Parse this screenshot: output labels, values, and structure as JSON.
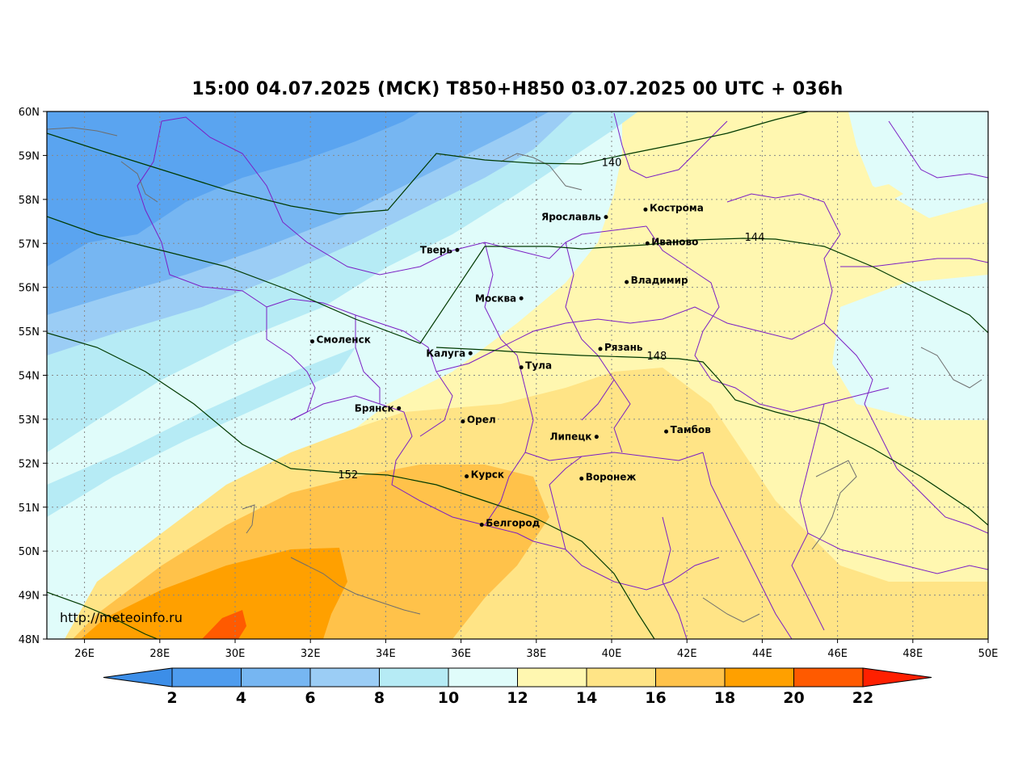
{
  "title": "15:00 04.07.2025 (МСК) T850+H850 03.07.2025 00 UTC + 036h",
  "watermark": "http://meteoinfo.ru",
  "map": {
    "lon_range": [
      25,
      50
    ],
    "lat_range": [
      48,
      60
    ],
    "x_ticks": [
      "26E",
      "28E",
      "30E",
      "32E",
      "34E",
      "36E",
      "38E",
      "40E",
      "42E",
      "44E",
      "46E",
      "48E",
      "50E"
    ],
    "x_tick_values": [
      26,
      28,
      30,
      32,
      34,
      36,
      38,
      40,
      42,
      44,
      46,
      48,
      50
    ],
    "y_ticks": [
      "60N",
      "59N",
      "58N",
      "57N",
      "56N",
      "55N",
      "54N",
      "53N",
      "52N",
      "51N",
      "50N",
      "49N",
      "48N"
    ],
    "y_tick_values": [
      60,
      59,
      58,
      57,
      56,
      55,
      54,
      53,
      52,
      51,
      50,
      49,
      48
    ],
    "grid": true
  },
  "cities": [
    {
      "name": "Кострома",
      "lon": 40.9,
      "lat": 57.77
    },
    {
      "name": "Ярославль",
      "lon": 39.85,
      "lat": 57.6
    },
    {
      "name": "Иваново",
      "lon": 40.95,
      "lat": 57.0
    },
    {
      "name": "Тверь",
      "lon": 35.9,
      "lat": 56.85
    },
    {
      "name": "Владимир",
      "lon": 40.4,
      "lat": 56.12
    },
    {
      "name": "Москва",
      "lon": 37.6,
      "lat": 55.75
    },
    {
      "name": "Смоленск",
      "lon": 32.05,
      "lat": 54.77
    },
    {
      "name": "Рязань",
      "lon": 39.7,
      "lat": 54.6
    },
    {
      "name": "Калуга",
      "lon": 36.25,
      "lat": 54.5
    },
    {
      "name": "Тула",
      "lon": 37.6,
      "lat": 54.18
    },
    {
      "name": "Брянск",
      "lon": 34.35,
      "lat": 53.25
    },
    {
      "name": "Орел",
      "lon": 36.05,
      "lat": 52.95
    },
    {
      "name": "Тамбов",
      "lon": 41.45,
      "lat": 52.72
    },
    {
      "name": "Липецк",
      "lon": 39.6,
      "lat": 52.6
    },
    {
      "name": "Курск",
      "lon": 36.15,
      "lat": 51.7
    },
    {
      "name": "Воронеж",
      "lon": 39.2,
      "lat": 51.65
    },
    {
      "name": "Белгород",
      "lon": 36.55,
      "lat": 50.6
    }
  ],
  "contours": [
    {
      "label": "140",
      "label_lon": 40.0,
      "label_lat": 58.85
    },
    {
      "label": "144",
      "label_lon": 43.8,
      "label_lat": 57.15
    },
    {
      "label": "148",
      "label_lon": 41.2,
      "label_lat": 54.45
    },
    {
      "label": "152",
      "label_lon": 33.0,
      "label_lat": 51.75
    }
  ],
  "colorbar": {
    "ticks": [
      "2",
      "4",
      "6",
      "8",
      "10",
      "12",
      "14",
      "16",
      "18",
      "20",
      "22"
    ],
    "colors": [
      "#3c8ee8",
      "#4e9cee",
      "#76b6f2",
      "#9bcdf5",
      "#b6ebf5",
      "#e0fcfa",
      "#fff7b0",
      "#ffe486",
      "#ffc24a",
      "#ffa000",
      "#ff5a00",
      "#ff2000"
    ]
  }
}
